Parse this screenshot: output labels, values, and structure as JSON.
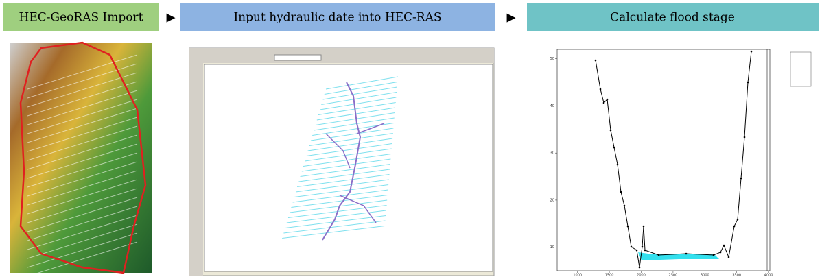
{
  "steps": [
    {
      "label": "HEC-GeoRAS Import"
    },
    {
      "label": "Input hydraulic date into HEC-RAS"
    },
    {
      "label": "Calculate flood stage"
    }
  ],
  "arrow": "▶",
  "plot": {
    "xlim": [
      680,
      4020
    ],
    "ylim": [
      5,
      52
    ],
    "xticks": [
      1000,
      1500,
      2000,
      2500,
      3000,
      3500,
      4000
    ],
    "yticks": [
      10,
      20,
      30,
      40,
      50
    ]
  }
}
